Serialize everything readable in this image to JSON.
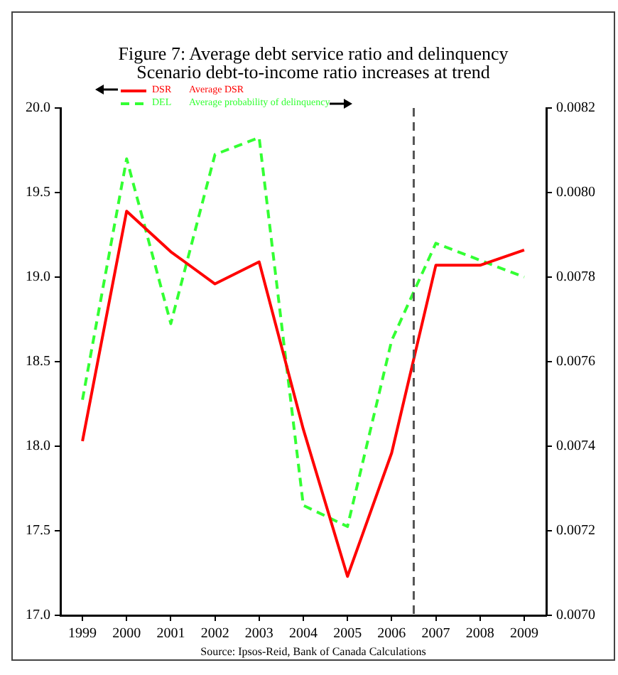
{
  "chart_data": {
    "type": "line",
    "title": "Figure 7: Average debt service ratio and delinquency",
    "subtitle": "Scenario debt-to-income ratio increases at trend",
    "x": [
      1999,
      2000,
      2001,
      2002,
      2003,
      2004,
      2005,
      2006,
      2007,
      2008,
      2009
    ],
    "xlim": [
      1998.5,
      2009.5
    ],
    "xticks": [
      1999,
      2000,
      2001,
      2002,
      2003,
      2004,
      2005,
      2006,
      2007,
      2008,
      2009
    ],
    "ylim": [
      17,
      20
    ],
    "yticks": [
      {
        "value": 17,
        "label": "17.0"
      },
      {
        "value": 17.5,
        "label": "17.5"
      },
      {
        "value": 18,
        "label": "18.0"
      },
      {
        "value": 18.5,
        "label": "18.5"
      },
      {
        "value": 19,
        "label": "19.0"
      },
      {
        "value": 19.5,
        "label": "19.5"
      },
      {
        "value": 20,
        "label": "20.0"
      }
    ],
    "y2lim": [
      0.007,
      0.0082
    ],
    "y2ticks": [
      {
        "value": 0.007,
        "label": "0.0070"
      },
      {
        "value": 0.0072,
        "label": "0.0072"
      },
      {
        "value": 0.0074,
        "label": "0.0074"
      },
      {
        "value": 0.0076,
        "label": "0.0076"
      },
      {
        "value": 0.0078,
        "label": "0.0078"
      },
      {
        "value": 0.008,
        "label": "0.0080"
      },
      {
        "value": 0.0082,
        "label": "0.0082"
      }
    ],
    "series": [
      {
        "name": "DSR",
        "color": "#ff0000",
        "line_style": "solid",
        "values": [
          18.03,
          19.39,
          19.15,
          18.96,
          19.09,
          18.1,
          17.23,
          17.96,
          19.07,
          19.07,
          19.16
        ]
      },
      {
        "name": "DEL",
        "color": "#33ff33",
        "line_style": "dashed",
        "axis": "y2",
        "values": [
          0.00751,
          0.00808,
          0.00769,
          0.00809,
          0.00813,
          0.00726,
          0.00721,
          0.00765,
          0.00788,
          0.00784,
          0.0078
        ]
      }
    ],
    "ref_lines": [
      {
        "axis": "x",
        "value": 2006.5,
        "color": "#555555",
        "line_style": "dashed"
      }
    ],
    "annotations": [
      "Average DSR",
      "Average probability of delinquency",
      "Source: Ipsos-Reid, Bank of Canada Calculations"
    ],
    "legend": "top left",
    "marker": "none",
    "grid": false
  }
}
